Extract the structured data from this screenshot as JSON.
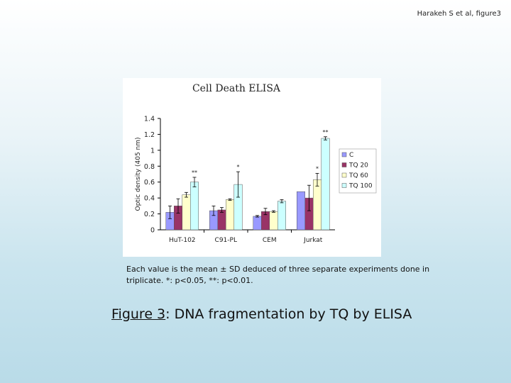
{
  "header": {
    "text": "Harakeh S et al, figure3"
  },
  "note": {
    "text": "Each value is the mean ± SD deduced of three separate experiments done in triplicate. *: p<0.05, **: p<0.01."
  },
  "caption": {
    "label": "Figure 3",
    "text": ": DNA fragmentation by TQ by ELISA"
  },
  "chart_data": {
    "type": "bar",
    "title": "Cell Death ELISA",
    "xlabel": "",
    "ylabel": "Optic density (405 nm)",
    "ylim": [
      0,
      1.4
    ],
    "yticks": [
      "0",
      "0.2",
      "0.4",
      "0.6",
      "0.8",
      "1",
      "1.2",
      "1.4"
    ],
    "grid": false,
    "legend_position": "right",
    "categories": [
      "HuT-102",
      "C91-PL",
      "CEM",
      "Jurkat"
    ],
    "series": [
      {
        "name": "C",
        "color": "#9999ff",
        "values": [
          0.22,
          0.24,
          0.17,
          0.48
        ],
        "errors": [
          0.08,
          0.06,
          0.01,
          0.0
        ]
      },
      {
        "name": "TQ 20",
        "color": "#993366",
        "values": [
          0.3,
          0.25,
          0.23,
          0.4
        ],
        "errors": [
          0.09,
          0.03,
          0.04,
          0.16
        ]
      },
      {
        "name": "TQ 60",
        "color": "#ffffcc",
        "values": [
          0.44,
          0.38,
          0.23,
          0.63
        ],
        "errors": [
          0.03,
          0.01,
          0.01,
          0.08
        ]
      },
      {
        "name": "TQ 100",
        "color": "#ccffff",
        "values": [
          0.6,
          0.57,
          0.36,
          1.15
        ],
        "errors": [
          0.06,
          0.16,
          0.02,
          0.02
        ]
      }
    ],
    "annotations": [
      {
        "category": "HuT-102",
        "series": "TQ 100",
        "text": "**"
      },
      {
        "category": "C91-PL",
        "series": "TQ 100",
        "text": "*"
      },
      {
        "category": "Jurkat",
        "series": "TQ 60",
        "text": "*"
      },
      {
        "category": "Jurkat",
        "series": "TQ 100",
        "text": "**"
      }
    ]
  }
}
